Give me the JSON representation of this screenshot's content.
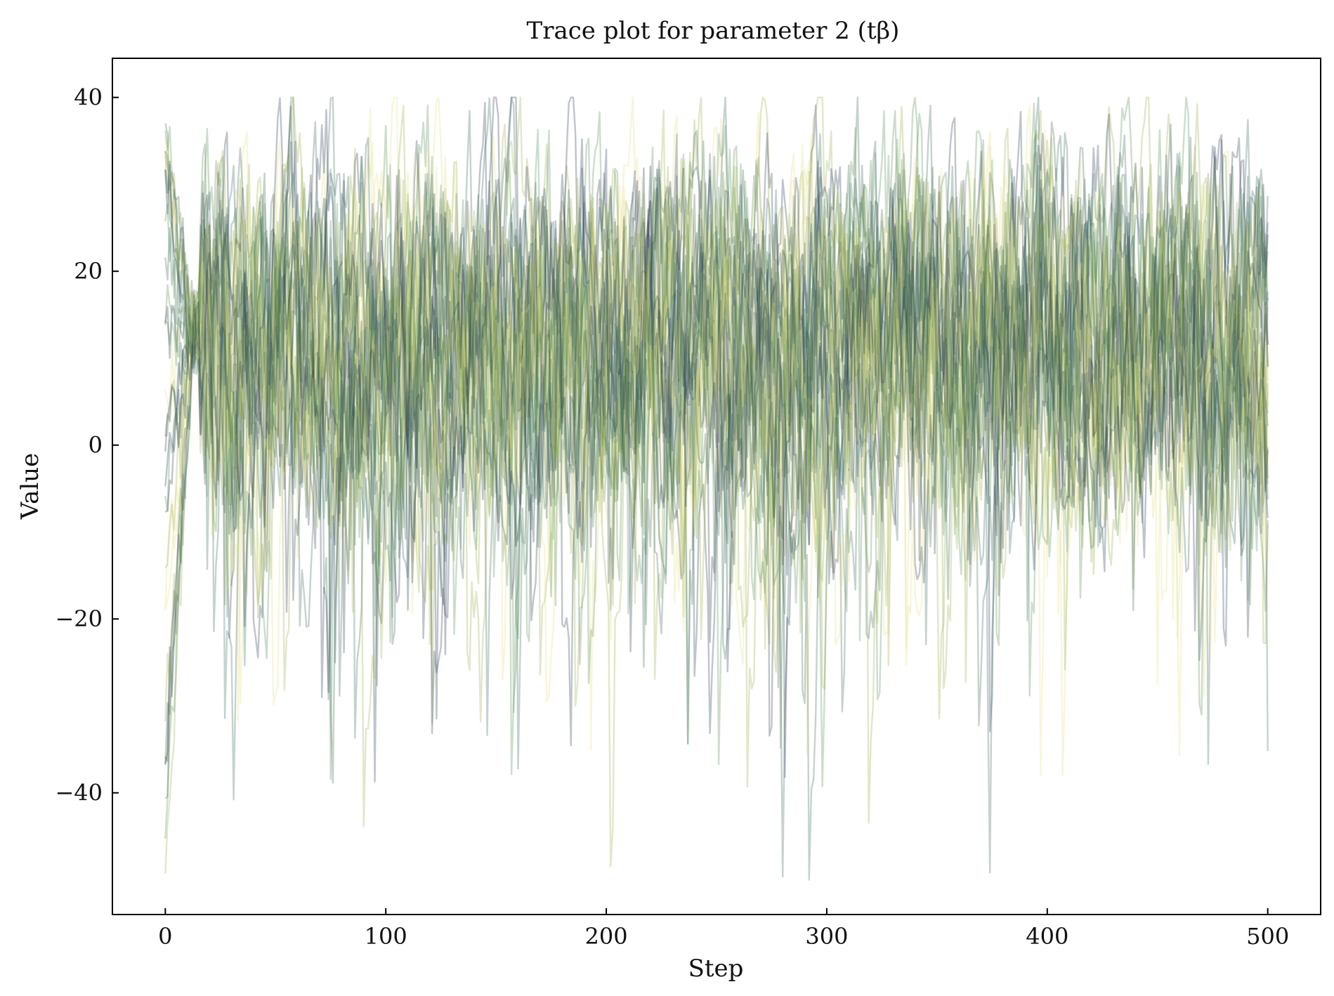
{
  "chart_data": {
    "type": "line",
    "title": "Trace plot for parameter 2 (tβ)",
    "xlabel": "Step",
    "ylabel": "Value",
    "xlim": [
      -24,
      524
    ],
    "ylim": [
      -54,
      44.5
    ],
    "xticks": [
      0,
      100,
      200,
      300,
      400,
      500
    ],
    "yticks": [
      -40,
      -20,
      0,
      20,
      40
    ],
    "xtick_labels": [
      "0",
      "100",
      "200",
      "300",
      "400",
      "500"
    ],
    "ytick_labels": [
      "−40",
      "−20",
      "0",
      "20",
      "40"
    ],
    "grid": false,
    "legend": "none",
    "n_chains": 32,
    "n_steps": 500,
    "value_range": [
      -50,
      40
    ],
    "stationary_band": [
      -10,
      35
    ],
    "stationary_center": 13,
    "burn_in_steps": 15,
    "line_opacity": 0.3,
    "colormap": [
      "#2b3a55",
      "#3e6b5e",
      "#5a8f5a",
      "#9bb04a",
      "#e3e08a"
    ]
  }
}
